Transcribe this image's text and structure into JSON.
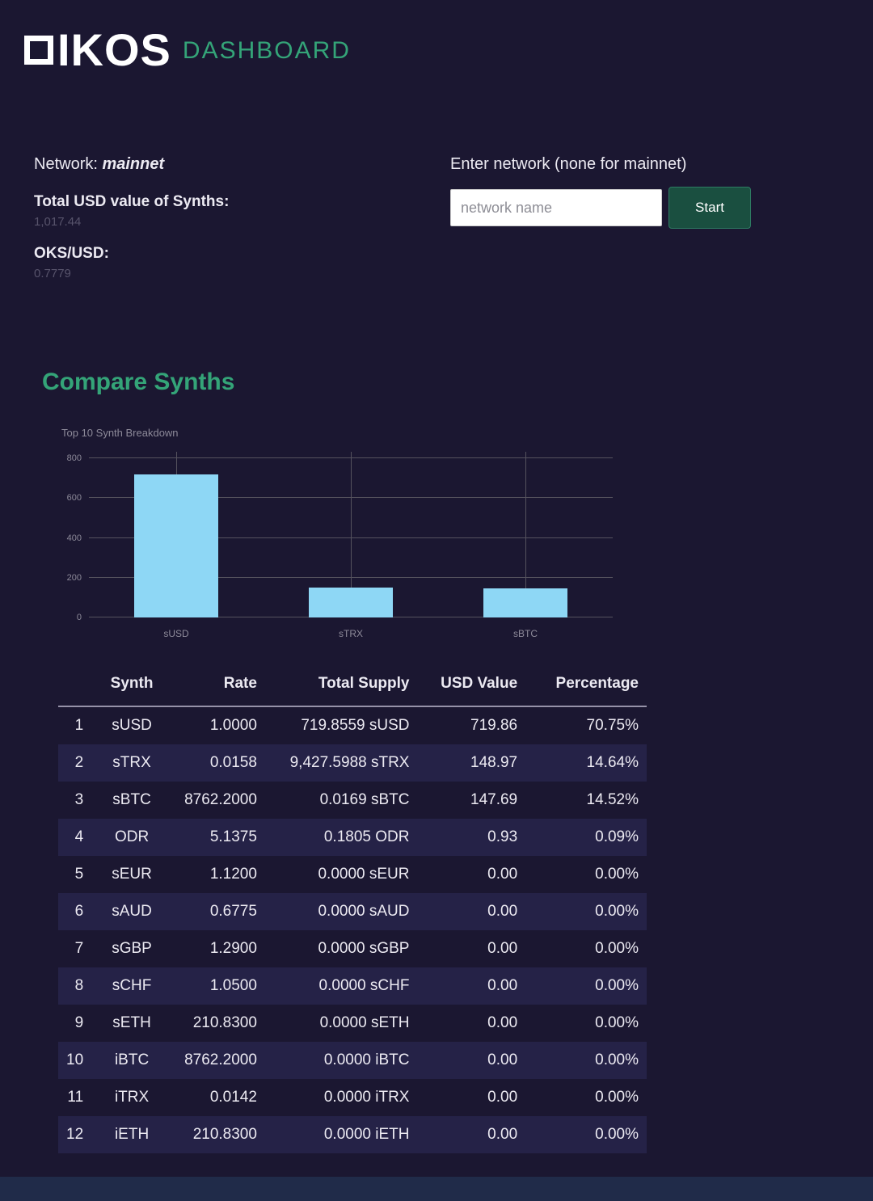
{
  "header": {
    "logo_text": "IKOS",
    "logo_suffix": "DASHBOARD"
  },
  "info": {
    "network_label": "Network:",
    "network_value": "mainnet",
    "total_usd_label": "Total USD value of Synths:",
    "total_usd_value": "1,017.44",
    "oks_usd_label": "OKS/USD:",
    "oks_usd_value": "0.7779"
  },
  "form": {
    "label": "Enter network (none for mainnet)",
    "placeholder": "network name",
    "start_label": "Start"
  },
  "section": {
    "title": "Compare Synths"
  },
  "chart_data": {
    "type": "bar",
    "title": "Top 10 Synth Breakdown",
    "categories": [
      "sUSD",
      "sTRX",
      "sBTC"
    ],
    "values": [
      719.86,
      148.97,
      147.69
    ],
    "ylim": [
      0,
      800
    ],
    "yticks": [
      0,
      200,
      400,
      600,
      800
    ],
    "bar_color": "#8ed7f5",
    "grid": true,
    "legend": false
  },
  "table": {
    "headers": [
      "Synth",
      "Rate",
      "Total Supply",
      "USD Value",
      "Percentage"
    ],
    "rows": [
      [
        "1",
        "sUSD",
        "1.0000",
        "719.8559 sUSD",
        "719.86",
        "70.75%"
      ],
      [
        "2",
        "sTRX",
        "0.0158",
        "9,427.5988 sTRX",
        "148.97",
        "14.64%"
      ],
      [
        "3",
        "sBTC",
        "8762.2000",
        "0.0169 sBTC",
        "147.69",
        "14.52%"
      ],
      [
        "4",
        "ODR",
        "5.1375",
        "0.1805 ODR",
        "0.93",
        "0.09%"
      ],
      [
        "5",
        "sEUR",
        "1.1200",
        "0.0000 sEUR",
        "0.00",
        "0.00%"
      ],
      [
        "6",
        "sAUD",
        "0.6775",
        "0.0000 sAUD",
        "0.00",
        "0.00%"
      ],
      [
        "7",
        "sGBP",
        "1.2900",
        "0.0000 sGBP",
        "0.00",
        "0.00%"
      ],
      [
        "8",
        "sCHF",
        "1.0500",
        "0.0000 sCHF",
        "0.00",
        "0.00%"
      ],
      [
        "9",
        "sETH",
        "210.8300",
        "0.0000 sETH",
        "0.00",
        "0.00%"
      ],
      [
        "10",
        "iBTC",
        "8762.2000",
        "0.0000 iBTC",
        "0.00",
        "0.00%"
      ],
      [
        "11",
        "iTRX",
        "0.0142",
        "0.0000 iTRX",
        "0.00",
        "0.00%"
      ],
      [
        "12",
        "iETH",
        "210.8300",
        "0.0000 iETH",
        "0.00",
        "0.00%"
      ]
    ]
  }
}
